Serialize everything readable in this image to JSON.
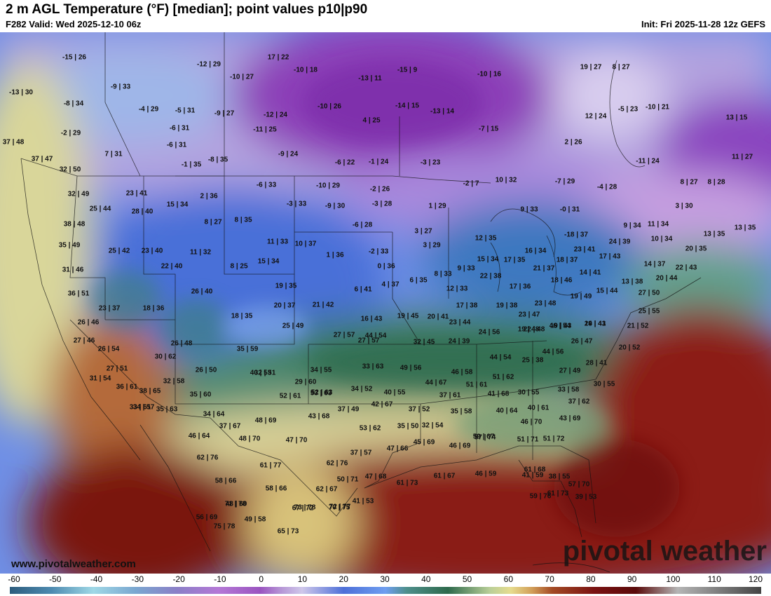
{
  "header": {
    "title": "2 m AGL Temperature (°F) [median]; point values p10|p90",
    "valid": "F282 Valid: Wed 2025-12-10 06z",
    "init": "Init: Fri 2025-11-28 12z GEFS"
  },
  "footer": {
    "website": "www.pivotalweather.com",
    "brand": "pivotal weather"
  },
  "colorbar": {
    "ticks": [
      "-60",
      "-50",
      "-40",
      "-30",
      "-20",
      "-10",
      "0",
      "10",
      "20",
      "30",
      "40",
      "50",
      "60",
      "70",
      "80",
      "90",
      "100",
      "110",
      "120"
    ],
    "min": -60,
    "max": 120,
    "stops": [
      {
        "v": -60,
        "c": "#2d5c7d"
      },
      {
        "v": -50,
        "c": "#4d8ab0"
      },
      {
        "v": -40,
        "c": "#9fd8e6"
      },
      {
        "v": -30,
        "c": "#7aa7d0"
      },
      {
        "v": -20,
        "c": "#8a7fc7"
      },
      {
        "v": -10,
        "c": "#b478d6"
      },
      {
        "v": 0,
        "c": "#9a54c0"
      },
      {
        "v": 5,
        "c": "#b696d6"
      },
      {
        "v": 10,
        "c": "#cfc7ea"
      },
      {
        "v": 20,
        "c": "#4d6fd8"
      },
      {
        "v": 30,
        "c": "#6f9ef0"
      },
      {
        "v": 35,
        "c": "#4e8f8c"
      },
      {
        "v": 45,
        "c": "#2e6a4c"
      },
      {
        "v": 55,
        "c": "#b9cf98"
      },
      {
        "v": 60,
        "c": "#e6dc8e"
      },
      {
        "v": 65,
        "c": "#d2a05a"
      },
      {
        "v": 70,
        "c": "#a34a24"
      },
      {
        "v": 80,
        "c": "#7a1212"
      },
      {
        "v": 90,
        "c": "#5a0a0a"
      },
      {
        "v": 100,
        "c": "#b5b5b5"
      },
      {
        "v": 120,
        "c": "#444444"
      }
    ]
  },
  "point_values": [
    "-15|26",
    "-12|29",
    "17|22",
    "-10|18",
    "-15|9",
    "-10|16",
    "19|27",
    "8|27",
    "-13|30",
    "-9|33",
    "-10|27",
    "-13|11",
    "-8|34",
    "-4|29",
    "-5|31",
    "-9|27",
    "-12|24",
    "-10|26",
    "-14|15",
    "-13|14",
    "12|24",
    "-5|23",
    "-10|21",
    "13|15",
    "-2|29",
    "-6|31",
    "-11|25",
    "4|25",
    "-7|15",
    "37|48",
    "-6|31",
    "2|26",
    "7|31",
    "-9|24",
    "37|47",
    "-1|35",
    "-8|35",
    "-6|22",
    "-1|24",
    "-3|23",
    "-11|24",
    "11|27",
    "32|50",
    "-6|33",
    "-10|29",
    "-2|26",
    "-2|7",
    "10|32",
    "-7|29",
    "-4|28",
    "8|27",
    "8|28",
    "32|49",
    "23|41",
    "15|34",
    "2|36",
    "-3|33",
    "-9|30",
    "-3|28",
    "1|29",
    "9|33",
    "-0|31",
    "3|30",
    "25|44",
    "28|40",
    "8|27",
    "8|35",
    "-6|28",
    "38|48",
    "3|27",
    "12|35",
    "-18|37",
    "9|34",
    "11|34",
    "13|35",
    "13|35",
    "10|34",
    "35|49",
    "25|42",
    "23|40",
    "11|32",
    "11|33",
    "10|37",
    "3|29",
    "23|41",
    "24|39",
    "20|35",
    "1|36",
    "-2|33",
    "15|34",
    "17|35",
    "16|34",
    "17|43",
    "31|46",
    "22|40",
    "8|25",
    "15|34",
    "0|36",
    "9|33",
    "21|37",
    "18|37",
    "14|37",
    "22|43",
    "14|41",
    "6|35",
    "8|33",
    "22|38",
    "18|46",
    "4|37",
    "20|44",
    "13|38",
    "36|51",
    "26|40",
    "19|35",
    "6|41",
    "12|33",
    "17|36",
    "15|44",
    "19|49",
    "27|50",
    "23|37",
    "18|36",
    "20|37",
    "21|42",
    "17|38",
    "19|38",
    "23|48",
    "23|47",
    "25|55",
    "18|35",
    "16|43",
    "19|45",
    "20|41",
    "23|44",
    "22|48",
    "46|54",
    "24|41",
    "26|46",
    "25|49",
    "24|56",
    "19|48",
    "19|43",
    "19|43",
    "27|57",
    "44|54",
    "21|52",
    "27|46",
    "26|47",
    "32|45",
    "24|39",
    "26|48",
    "35|59",
    "27|57",
    "20|52",
    "44|54",
    "44|56",
    "26|54",
    "30|62",
    "40|53",
    "25|38",
    "28|41",
    "27|51",
    "26|50",
    "32|51",
    "34|55",
    "33|63",
    "49|56",
    "46|58",
    "27|49",
    "31|54",
    "32|58",
    "29|60",
    "44|67",
    "51|61",
    "51|62",
    "30|55",
    "36|61",
    "38|65",
    "52|63",
    "34|52",
    "30|55",
    "33|58",
    "34|57",
    "35|60",
    "52|61",
    "53|63",
    "40|55",
    "37|61",
    "41|68",
    "33|61",
    "35|63",
    "34|64",
    "42|67",
    "37|62",
    "37|49",
    "37|52",
    "35|58",
    "40|61",
    "40|64",
    "37|67",
    "48|69",
    "43|68",
    "53|62",
    "35|50",
    "32|54",
    "43|69",
    "46|70",
    "46|64",
    "48|70",
    "47|70",
    "45|69",
    "59|67",
    "37|57",
    "47|66",
    "46|69",
    "51|71",
    "51|72",
    "62|76",
    "61|77",
    "62|76",
    "57|74",
    "61|68",
    "38|55",
    "50|71",
    "47|68",
    "61|73",
    "61|67",
    "46|59",
    "41|59",
    "57|70",
    "58|66",
    "58|66",
    "62|67",
    "59|76",
    "39|53",
    "48|60",
    "73|78",
    "72|77",
    "61|73",
    "71|78",
    "67|72",
    "70|75",
    "41|53",
    "56|69",
    "75|78",
    "49|58",
    "65|73"
  ]
}
